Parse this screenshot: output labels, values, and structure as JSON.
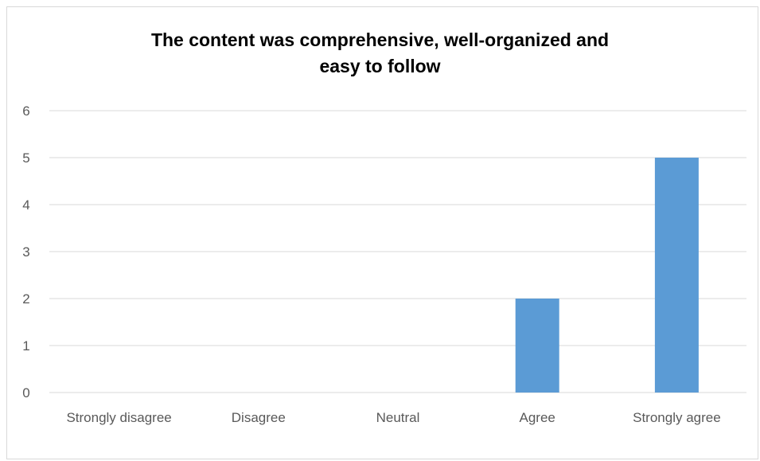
{
  "chart_data": {
    "type": "bar",
    "title_lines": [
      "The content was comprehensive, well-organized and",
      "easy to follow"
    ],
    "categories": [
      "Strongly disagree",
      "Disagree",
      "Neutral",
      "Agree",
      "Strongly agree"
    ],
    "values": [
      0,
      0,
      0,
      2,
      5
    ],
    "ylim": [
      0,
      6
    ],
    "yticks": [
      0,
      1,
      2,
      3,
      4,
      5,
      6
    ],
    "xlabel": "",
    "ylabel": "",
    "grid": true,
    "legend": "none"
  },
  "colors": {
    "bar": "#5b9bd5",
    "grid": "#d9d9d9",
    "text": "#595959",
    "title": "#000000"
  }
}
